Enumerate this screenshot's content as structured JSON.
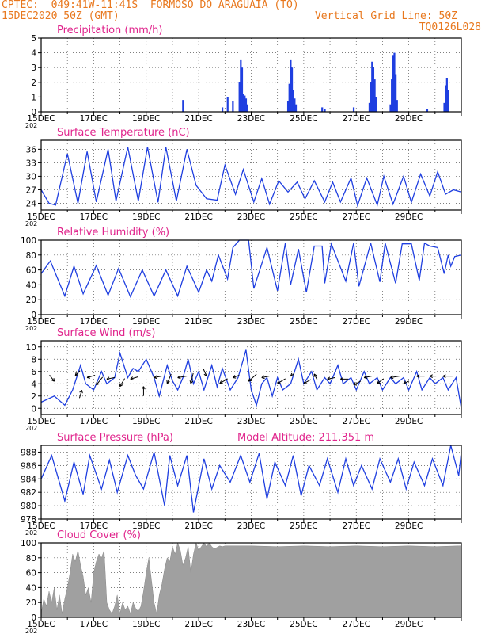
{
  "header": {
    "line1": "CPTEC:  049:41W-11:41S  FORMOSO DO ARAGUAIA (TO)",
    "line2_left": "15DEC2020 50Z (GMT)",
    "line2_right": "Vertical Grid Line: 50Z",
    "line3_right": "TQ0126L028"
  },
  "colors": {
    "header": "#e8781e",
    "title": "#e0248c",
    "series": "#1f3fe0",
    "cloud": "#a0a0a0",
    "axis": "#000000"
  },
  "x_axis": {
    "labels": [
      "15DEC",
      "17DEC",
      "19DEC",
      "21DEC",
      "23DEC",
      "25DEC",
      "27DEC",
      "29DEC"
    ],
    "year_fragment": "202"
  },
  "chart_data": [
    {
      "type": "bar",
      "key": "precip",
      "title": "Precipitation (mm/h)",
      "ylim": [
        0,
        5
      ],
      "yticks": [
        0,
        1,
        2,
        3,
        4,
        5
      ],
      "events": [
        [
          5.4,
          0.8
        ],
        [
          6.9,
          0.3
        ],
        [
          7.1,
          1.0
        ],
        [
          7.3,
          0.7
        ],
        [
          7.55,
          2.0
        ],
        [
          7.6,
          3.5
        ],
        [
          7.65,
          3.0
        ],
        [
          7.7,
          1.2
        ],
        [
          7.75,
          1.1
        ],
        [
          7.8,
          0.9
        ],
        [
          7.85,
          0.5
        ],
        [
          9.4,
          0.7
        ],
        [
          9.45,
          1.9
        ],
        [
          9.5,
          3.5
        ],
        [
          9.55,
          3.0
        ],
        [
          9.6,
          1.5
        ],
        [
          9.65,
          0.9
        ],
        [
          9.7,
          0.5
        ],
        [
          10.7,
          0.3
        ],
        [
          10.8,
          0.2
        ],
        [
          11.9,
          0.3
        ],
        [
          12.5,
          0.6
        ],
        [
          12.55,
          2.0
        ],
        [
          12.6,
          3.4
        ],
        [
          12.65,
          3.0
        ],
        [
          12.7,
          2.2
        ],
        [
          12.75,
          1.0
        ],
        [
          13.3,
          0.5
        ],
        [
          13.35,
          2.2
        ],
        [
          13.4,
          3.8
        ],
        [
          13.45,
          4.0
        ],
        [
          13.5,
          2.5
        ],
        [
          13.55,
          0.8
        ],
        [
          14.7,
          0.2
        ],
        [
          15.35,
          0.6
        ],
        [
          15.4,
          1.8
        ],
        [
          15.45,
          2.3
        ],
        [
          15.5,
          1.5
        ]
      ]
    },
    {
      "type": "line",
      "key": "temp",
      "title": "Surface Temperature (nC)",
      "ylim": [
        22.5,
        38
      ],
      "yticks": [
        24,
        27,
        30,
        33,
        36
      ],
      "x": [
        0,
        0.3,
        0.55,
        1,
        1.4,
        1.75,
        2.1,
        2.55,
        2.85,
        3.3,
        3.7,
        4.05,
        4.45,
        4.75,
        5.15,
        5.55,
        5.9,
        6.3,
        6.7,
        7.0,
        7.4,
        7.7,
        8.1,
        8.4,
        8.7,
        9.05,
        9.4,
        9.75,
        10.05,
        10.4,
        10.8,
        11.1,
        11.4,
        11.8,
        12.05,
        12.4,
        12.8,
        13.05,
        13.4,
        13.8,
        14.1,
        14.45,
        14.8,
        15.1,
        15.4,
        15.7,
        16
      ],
      "y": [
        27,
        24,
        23.6,
        35,
        24,
        35.5,
        24.3,
        36,
        24.5,
        36.5,
        24.5,
        36.5,
        24.2,
        36.5,
        24.5,
        36,
        28,
        25,
        24.7,
        32.5,
        26,
        31.5,
        24.3,
        29.5,
        23.8,
        29,
        26.5,
        28.7,
        25,
        29,
        24.3,
        28.7,
        24.3,
        29.6,
        23.5,
        29.6,
        23.6,
        30,
        23.8,
        30,
        24.2,
        30.5,
        25.6,
        31,
        26,
        27,
        26.5
      ]
    },
    {
      "type": "line",
      "key": "rh",
      "title": "Relative Humidity (%)",
      "ylim": [
        0,
        100
      ],
      "yticks": [
        0,
        20,
        40,
        60,
        80,
        100
      ],
      "x": [
        0,
        0.35,
        0.9,
        1.25,
        1.6,
        2.1,
        2.55,
        2.95,
        3.4,
        3.85,
        4.3,
        4.75,
        5.2,
        5.55,
        6.0,
        6.3,
        6.5,
        6.75,
        7.1,
        7.3,
        7.55,
        7.9,
        8.1,
        8.6,
        9.0,
        9.3,
        9.5,
        9.8,
        10.1,
        10.4,
        10.7,
        10.8,
        11.05,
        11.6,
        11.9,
        12.1,
        12.55,
        12.9,
        13.1,
        13.5,
        13.75,
        14.1,
        14.4,
        14.6,
        14.8,
        15.1,
        15.35,
        15.5,
        15.6,
        15.75,
        16
      ],
      "y": [
        55,
        72,
        25,
        65,
        28,
        66,
        26,
        62,
        24,
        60,
        25,
        60,
        25,
        65,
        30,
        60,
        45,
        80,
        48,
        90,
        100,
        100,
        35,
        90,
        32,
        96,
        40,
        88,
        30,
        92,
        92,
        42,
        95,
        45,
        96,
        38,
        96,
        44,
        96,
        42,
        95,
        95,
        46,
        96,
        92,
        90,
        55,
        80,
        65,
        78,
        80
      ]
    },
    {
      "type": "line",
      "key": "wind",
      "title": "Surface Wind (m/s)",
      "ylim": [
        -1,
        11
      ],
      "yticks": [
        0,
        2,
        4,
        6,
        8,
        10
      ],
      "x": [
        0,
        0.5,
        0.9,
        1.2,
        1.5,
        1.7,
        2.0,
        2.3,
        2.5,
        2.8,
        3.0,
        3.3,
        3.5,
        3.7,
        4.0,
        4.3,
        4.5,
        4.8,
        5.0,
        5.2,
        5.4,
        5.6,
        5.8,
        6.0,
        6.2,
        6.5,
        6.7,
        6.9,
        7.2,
        7.5,
        7.8,
        8.0,
        8.2,
        8.4,
        8.6,
        8.8,
        9.0,
        9.2,
        9.5,
        9.8,
        10.0,
        10.3,
        10.5,
        10.8,
        11.0,
        11.3,
        11.5,
        11.8,
        12.0,
        12.3,
        12.5,
        12.8,
        13.0,
        13.3,
        13.5,
        13.8,
        14.0,
        14.3,
        14.5,
        14.8,
        15.0,
        15.3,
        15.5,
        15.8,
        16
      ],
      "y": [
        1,
        2,
        0.5,
        3,
        7,
        4,
        3,
        6,
        4,
        5,
        9,
        5,
        6.5,
        6,
        8,
        5,
        2,
        7,
        4.5,
        3,
        5,
        8,
        4,
        6,
        3,
        7,
        3.5,
        6.5,
        3,
        5,
        9.5,
        3,
        0.5,
        4,
        5,
        2,
        5,
        3,
        4,
        8,
        4,
        6,
        3,
        5,
        4,
        7,
        4,
        5,
        3,
        6,
        4,
        5,
        3,
        5,
        4,
        5,
        3,
        6,
        3,
        5,
        4,
        5,
        3,
        5,
        0
      ]
    },
    {
      "type": "line",
      "key": "pressure",
      "title": "Surface Pressure (hPa)",
      "ylim": [
        978,
        989
      ],
      "yticks": [
        978,
        980,
        982,
        984,
        986,
        988
      ],
      "annotation": "Model Altitude: 211.351 m",
      "x": [
        0,
        0.4,
        0.9,
        1.25,
        1.6,
        1.85,
        2.3,
        2.6,
        2.9,
        3.3,
        3.6,
        3.9,
        4.3,
        4.7,
        4.9,
        5.2,
        5.55,
        5.8,
        6.2,
        6.5,
        6.8,
        7.2,
        7.6,
        7.95,
        8.3,
        8.6,
        8.9,
        9.3,
        9.6,
        9.9,
        10.2,
        10.6,
        10.9,
        11.3,
        11.6,
        11.9,
        12.2,
        12.6,
        12.9,
        13.3,
        13.6,
        13.9,
        14.2,
        14.6,
        14.9,
        15.3,
        15.6,
        15.9,
        16
      ],
      "y": [
        984,
        987.5,
        980.7,
        986.5,
        981.7,
        987.5,
        982.5,
        986.8,
        982,
        987.5,
        984.5,
        982.5,
        988,
        980,
        987.5,
        983,
        987.5,
        979,
        987,
        982.5,
        986,
        983.5,
        987.5,
        983.5,
        987.8,
        981,
        986.5,
        983,
        987.5,
        981.5,
        986,
        983,
        987,
        982,
        987,
        983,
        986,
        982.5,
        987,
        983.5,
        987,
        982.5,
        986.5,
        983,
        987,
        983,
        989,
        984.5,
        988
      ]
    },
    {
      "type": "area",
      "key": "cloud",
      "title": "Cloud Cover (%)",
      "ylim": [
        0,
        100
      ],
      "yticks": [
        0,
        20,
        40,
        60,
        80,
        100
      ],
      "x": [
        0,
        0.1,
        0.2,
        0.3,
        0.4,
        0.5,
        0.6,
        0.7,
        0.8,
        0.9,
        1.0,
        1.1,
        1.2,
        1.3,
        1.4,
        1.5,
        1.6,
        1.7,
        1.8,
        1.9,
        2.0,
        2.1,
        2.2,
        2.3,
        2.4,
        2.5,
        2.6,
        2.7,
        2.8,
        2.9,
        3.0,
        3.1,
        3.2,
        3.3,
        3.4,
        3.5,
        3.6,
        3.7,
        3.8,
        3.9,
        4.0,
        4.1,
        4.2,
        4.3,
        4.4,
        4.5,
        4.6,
        4.7,
        4.8,
        4.9,
        5.0,
        5.1,
        5.2,
        5.3,
        5.4,
        5.5,
        5.6,
        5.7,
        5.8,
        5.9,
        6.0,
        6.1,
        6.2,
        6.3,
        6.4,
        6.5,
        6.6,
        6.7,
        6.8,
        6.9,
        7.0,
        8,
        9,
        10,
        11,
        12,
        13,
        14,
        15,
        15.9,
        16
      ],
      "y": [
        5,
        25,
        15,
        35,
        20,
        40,
        10,
        30,
        5,
        25,
        40,
        60,
        85,
        75,
        90,
        70,
        55,
        30,
        40,
        20,
        60,
        75,
        85,
        80,
        90,
        20,
        10,
        5,
        15,
        30,
        5,
        20,
        10,
        15,
        5,
        20,
        12,
        8,
        15,
        35,
        60,
        80,
        50,
        20,
        5,
        30,
        45,
        65,
        80,
        75,
        95,
        85,
        100,
        90,
        70,
        80,
        95,
        60,
        85,
        100,
        90,
        95,
        100,
        95,
        100,
        95,
        92,
        94,
        96,
        95,
        96,
        96,
        95,
        96,
        95,
        96,
        95,
        96,
        95,
        96,
        96
      ]
    }
  ]
}
